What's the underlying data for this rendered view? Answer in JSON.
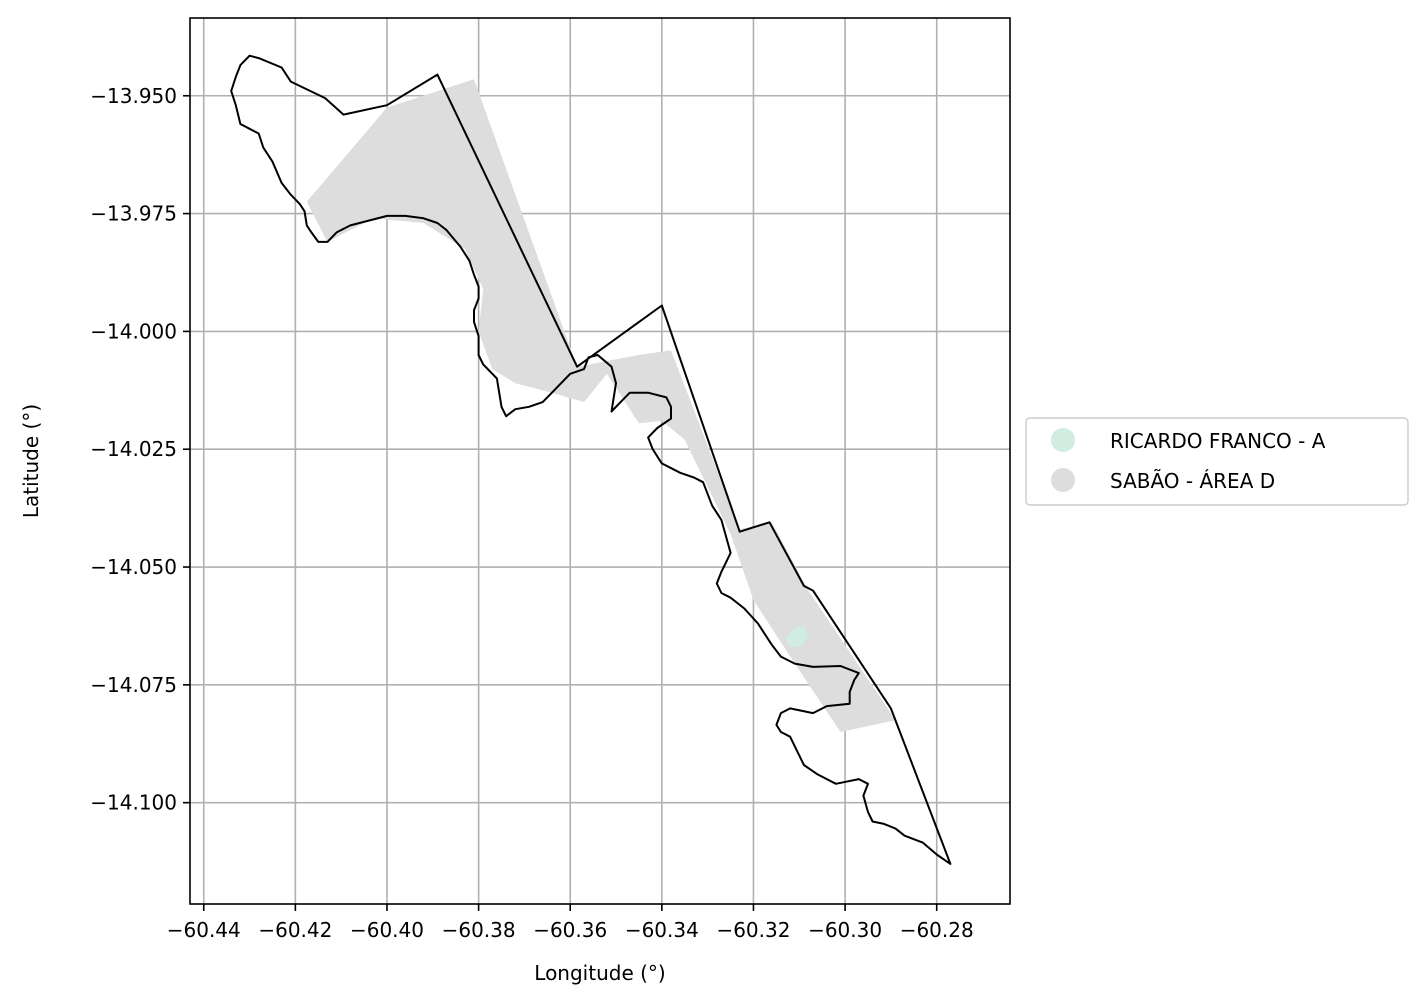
{
  "chart_data": {
    "type": "map",
    "xlabel": "Longitude (°)",
    "ylabel": "Latitude (°)",
    "xlim": [
      -60.443,
      -60.264
    ],
    "ylim": [
      -14.1215,
      -13.9335
    ],
    "grid": true,
    "legend_placement": "right",
    "xticks": [
      {
        "value": -60.44,
        "label": "−60.44"
      },
      {
        "value": -60.42,
        "label": "−60.42"
      },
      {
        "value": -60.4,
        "label": "−60.40"
      },
      {
        "value": -60.38,
        "label": "−60.38"
      },
      {
        "value": -60.36,
        "label": "−60.36"
      },
      {
        "value": -60.34,
        "label": "−60.34"
      },
      {
        "value": -60.32,
        "label": "−60.32"
      },
      {
        "value": -60.3,
        "label": "−60.30"
      },
      {
        "value": -60.28,
        "label": "−60.28"
      }
    ],
    "yticks": [
      {
        "value": -13.95,
        "label": "−13.950"
      },
      {
        "value": -13.975,
        "label": "−13.975"
      },
      {
        "value": -14.0,
        "label": "−14.000"
      },
      {
        "value": -14.025,
        "label": "−14.025"
      },
      {
        "value": -14.05,
        "label": "−14.050"
      },
      {
        "value": -14.075,
        "label": "−14.075"
      },
      {
        "value": -14.1,
        "label": "−14.100"
      }
    ],
    "legend": [
      {
        "label": "RICARDO FRANCO - A",
        "color": "#d1ece1"
      },
      {
        "label": "SABÃO - ÁREA D",
        "color": "#dddddd"
      }
    ],
    "colors": {
      "outline": "#000000",
      "grid": "#b0b0b0",
      "area_d": "#dddddd",
      "ricardo_franco": "#d1ece1"
    },
    "layers": {
      "area_d_fill": [
        [
          -60.4175,
          -13.9725
        ],
        [
          -60.4,
          -13.9525
        ],
        [
          -60.381,
          -13.9465
        ],
        [
          -60.3585,
          -14.0075
        ],
        [
          -60.345,
          -14.005
        ],
        [
          -60.338,
          -14.004
        ],
        [
          -60.323,
          -14.042
        ],
        [
          -60.316,
          -14.0405
        ],
        [
          -60.308,
          -14.055
        ],
        [
          -60.289,
          -14.0825
        ],
        [
          -60.301,
          -14.085
        ],
        [
          -60.312,
          -14.069
        ],
        [
          -60.32,
          -14.057
        ],
        [
          -60.325,
          -14.043
        ],
        [
          -60.335,
          -14.023
        ],
        [
          -60.34,
          -14.019
        ],
        [
          -60.345,
          -14.0195
        ],
        [
          -60.352,
          -14.009
        ],
        [
          -60.357,
          -14.015
        ],
        [
          -60.364,
          -14.013
        ],
        [
          -60.372,
          -14.011
        ],
        [
          -60.377,
          -14.008
        ],
        [
          -60.38,
          -14.0
        ],
        [
          -60.379,
          -13.991
        ],
        [
          -60.383,
          -13.9825
        ],
        [
          -60.392,
          -13.977
        ],
        [
          -60.403,
          -13.976
        ],
        [
          -60.413,
          -13.981
        ],
        [
          -60.4175,
          -13.9725
        ]
      ],
      "ricardo_franco_fill": [
        [
          -60.313,
          -14.065
        ],
        [
          -60.311,
          -14.0628
        ],
        [
          -60.309,
          -14.0626
        ],
        [
          -60.308,
          -14.0645
        ],
        [
          -60.3095,
          -14.0667
        ],
        [
          -60.312,
          -14.067
        ],
        [
          -60.313,
          -14.065
        ]
      ],
      "boundary": [
        [
          -60.423,
          -13.944
        ],
        [
          -60.421,
          -13.947
        ],
        [
          -60.4135,
          -13.9505
        ],
        [
          -60.4095,
          -13.954
        ],
        [
          -60.4,
          -13.952
        ],
        [
          -60.389,
          -13.9455
        ],
        [
          -60.3585,
          -14.0075
        ],
        [
          -60.34,
          -13.9945
        ],
        [
          -60.323,
          -14.0425
        ],
        [
          -60.3165,
          -14.0405
        ],
        [
          -60.309,
          -14.054
        ],
        [
          -60.307,
          -14.055
        ],
        [
          -60.29,
          -14.08
        ],
        [
          -60.277,
          -14.113
        ],
        [
          -60.28,
          -14.111
        ],
        [
          -60.283,
          -14.1085
        ],
        [
          -60.287,
          -14.107
        ],
        [
          -60.289,
          -14.1055
        ],
        [
          -60.2915,
          -14.1045
        ],
        [
          -60.294,
          -14.104
        ],
        [
          -60.295,
          -14.102
        ],
        [
          -60.296,
          -14.0985
        ],
        [
          -60.295,
          -14.096
        ],
        [
          -60.297,
          -14.095
        ],
        [
          -60.302,
          -14.096
        ],
        [
          -60.306,
          -14.094
        ],
        [
          -60.309,
          -14.092
        ],
        [
          -60.312,
          -14.086
        ],
        [
          -60.314,
          -14.085
        ],
        [
          -60.315,
          -14.0835
        ],
        [
          -60.314,
          -14.081
        ],
        [
          -60.312,
          -14.08
        ],
        [
          -60.307,
          -14.081
        ],
        [
          -60.304,
          -14.0795
        ],
        [
          -60.299,
          -14.079
        ],
        [
          -60.299,
          -14.0765
        ],
        [
          -60.298,
          -14.074
        ],
        [
          -60.297,
          -14.0725
        ],
        [
          -60.301,
          -14.071
        ],
        [
          -60.307,
          -14.0712
        ],
        [
          -60.311,
          -14.0705
        ],
        [
          -60.314,
          -14.069
        ],
        [
          -60.316,
          -14.0665
        ],
        [
          -60.319,
          -14.062
        ],
        [
          -60.322,
          -14.0588
        ],
        [
          -60.325,
          -14.0565
        ],
        [
          -60.327,
          -14.0555
        ],
        [
          -60.328,
          -14.0535
        ],
        [
          -60.327,
          -14.051
        ],
        [
          -60.325,
          -14.047
        ],
        [
          -60.327,
          -14.04
        ],
        [
          -60.329,
          -14.037
        ],
        [
          -60.331,
          -14.032
        ],
        [
          -60.333,
          -14.031
        ],
        [
          -60.336,
          -14.03
        ],
        [
          -60.34,
          -14.028
        ],
        [
          -60.342,
          -14.025
        ],
        [
          -60.343,
          -14.0225
        ],
        [
          -60.341,
          -14.0205
        ],
        [
          -60.338,
          -14.0185
        ],
        [
          -60.338,
          -14.016
        ],
        [
          -60.339,
          -14.014
        ],
        [
          -60.343,
          -14.013
        ],
        [
          -60.347,
          -14.013
        ],
        [
          -60.349,
          -14.015
        ],
        [
          -60.351,
          -14.017
        ],
        [
          -60.35,
          -14.011
        ],
        [
          -60.351,
          -14.0075
        ],
        [
          -60.354,
          -14.005
        ],
        [
          -60.356,
          -14.0055
        ],
        [
          -60.357,
          -14.008
        ],
        [
          -60.36,
          -14.009
        ],
        [
          -60.362,
          -14.011
        ],
        [
          -60.364,
          -14.013
        ],
        [
          -60.366,
          -14.015
        ],
        [
          -60.369,
          -14.016
        ],
        [
          -60.372,
          -14.0165
        ],
        [
          -60.374,
          -14.018
        ],
        [
          -60.375,
          -14.016
        ],
        [
          -60.376,
          -14.01
        ],
        [
          -60.379,
          -14.007
        ],
        [
          -60.38,
          -14.005
        ],
        [
          -60.38,
          -14.001
        ],
        [
          -60.381,
          -13.998
        ],
        [
          -60.381,
          -13.9955
        ],
        [
          -60.38,
          -13.993
        ],
        [
          -60.38,
          -13.9905
        ],
        [
          -60.381,
          -13.988
        ],
        [
          -60.382,
          -13.985
        ],
        [
          -60.384,
          -13.982
        ],
        [
          -60.387,
          -13.9785
        ],
        [
          -60.389,
          -13.977
        ],
        [
          -60.392,
          -13.976
        ],
        [
          -60.396,
          -13.9755
        ],
        [
          -60.4,
          -13.9755
        ],
        [
          -60.404,
          -13.9765
        ],
        [
          -60.408,
          -13.9775
        ],
        [
          -60.411,
          -13.979
        ],
        [
          -60.413,
          -13.981
        ],
        [
          -60.415,
          -13.981
        ],
        [
          -60.4165,
          -13.979
        ],
        [
          -60.4175,
          -13.9775
        ],
        [
          -60.418,
          -13.9745
        ],
        [
          -60.419,
          -13.973
        ],
        [
          -60.421,
          -13.971
        ],
        [
          -60.423,
          -13.9685
        ],
        [
          -60.425,
          -13.964
        ],
        [
          -60.427,
          -13.961
        ],
        [
          -60.428,
          -13.958
        ],
        [
          -60.43,
          -13.957
        ],
        [
          -60.432,
          -13.956
        ],
        [
          -60.433,
          -13.952
        ],
        [
          -60.434,
          -13.949
        ],
        [
          -60.433,
          -13.946
        ],
        [
          -60.432,
          -13.9435
        ],
        [
          -60.43,
          -13.9415
        ],
        [
          -60.428,
          -13.942
        ],
        [
          -60.423,
          -13.944
        ]
      ]
    }
  }
}
